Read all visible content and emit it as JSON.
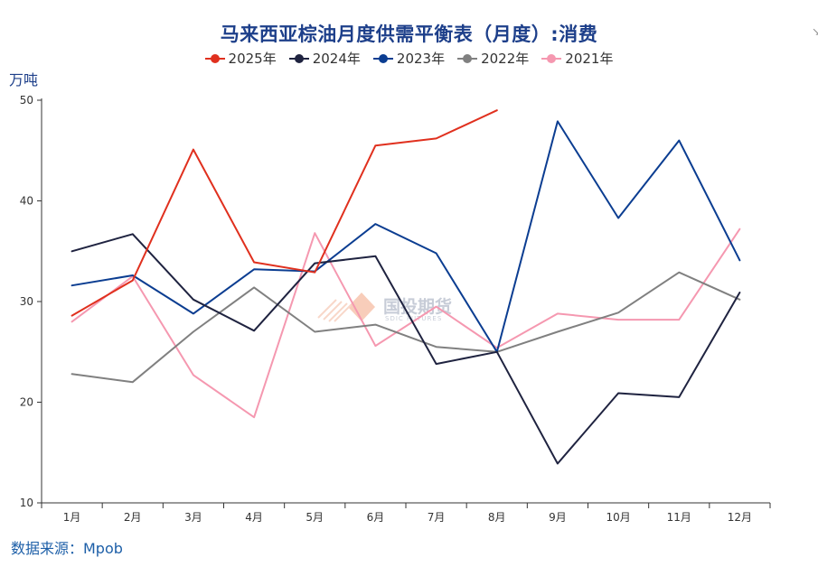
{
  "chart_data": {
    "type": "line",
    "title": "马来西亚棕油月度供需平衡表（月度）:消费",
    "ylabel": "万吨",
    "source": "数据来源：Mpob",
    "watermark": "国投期货",
    "watermark_en": "SDIC FUTURES",
    "corner_glyph": "↘",
    "categories": [
      "1月",
      "2月",
      "3月",
      "4月",
      "5月",
      "6月",
      "7月",
      "8月",
      "9月",
      "10月",
      "11月",
      "12月"
    ],
    "ylim": [
      10,
      50
    ],
    "yticks": [
      "10",
      "20",
      "30",
      "40",
      "50"
    ],
    "grid": false,
    "legend_position": "top-center",
    "series": [
      {
        "name": "2025年",
        "color": "#e0301e",
        "values": [
          28.6,
          32.1,
          45.1,
          33.9,
          32.9,
          45.5,
          46.2,
          49.0,
          null,
          null,
          null,
          null
        ]
      },
      {
        "name": "2024年",
        "color": "#1f2340",
        "values": [
          35.0,
          36.7,
          30.2,
          27.1,
          33.8,
          34.5,
          23.8,
          25.0,
          13.9,
          20.9,
          20.5,
          30.9
        ]
      },
      {
        "name": "2023年",
        "color": "#0b3d91",
        "values": [
          31.6,
          32.6,
          28.8,
          33.2,
          33.0,
          37.7,
          34.8,
          25.0,
          47.9,
          38.3,
          46.0,
          34.1
        ]
      },
      {
        "name": "2022年",
        "color": "#808080",
        "values": [
          22.8,
          22.0,
          27.0,
          31.4,
          27.0,
          27.7,
          25.5,
          25.0,
          27.0,
          28.9,
          32.9,
          30.2
        ]
      },
      {
        "name": "2021年",
        "color": "#f598b0",
        "values": [
          28.0,
          32.5,
          22.7,
          18.5,
          36.8,
          25.6,
          29.5,
          25.4,
          28.8,
          28.2,
          28.2,
          37.2
        ]
      }
    ]
  }
}
